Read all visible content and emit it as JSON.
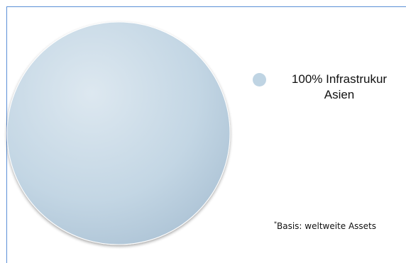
{
  "chart_data": {
    "type": "pie",
    "categories": [
      "Infrastrukur Asien"
    ],
    "values": [
      100
    ],
    "legend": {
      "entries": [
        {
          "line1": "100% Infrastrukur",
          "line2": "Asien"
        }
      ],
      "position": "right"
    },
    "colors": [
      "#bfd4e3"
    ],
    "footnote_mark": "*",
    "footnote": "Basis: weltweite Assets"
  },
  "colors": {
    "frame_border": "#5b8fd6"
  }
}
